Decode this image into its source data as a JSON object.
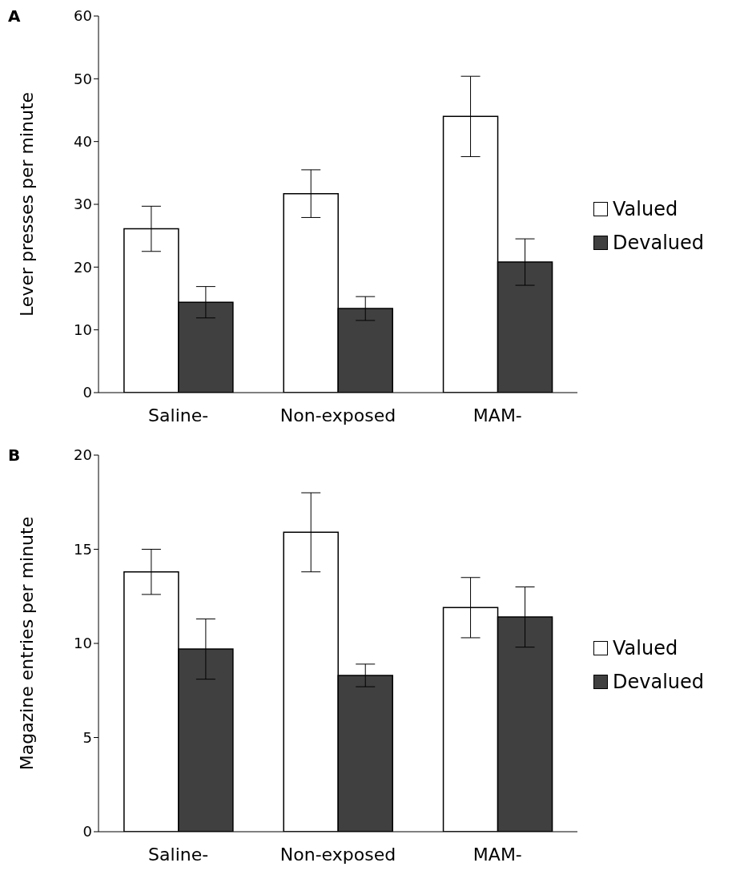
{
  "chart_data": [
    {
      "type": "bar",
      "title": "A",
      "ylabel": "Lever presses per minute",
      "categories": [
        "Saline-",
        "Non-exposed",
        "MAM-"
      ],
      "series": [
        {
          "name": "Valued",
          "color": "#ffffff",
          "values": [
            26.1,
            31.7,
            44.0
          ],
          "errors": [
            3.6,
            3.8,
            6.4
          ]
        },
        {
          "name": "Devalued",
          "color": "#404040",
          "values": [
            14.4,
            13.4,
            20.8
          ],
          "errors": [
            2.5,
            1.9,
            3.7
          ]
        }
      ],
      "ylim": [
        0,
        60
      ],
      "yticks": [
        0,
        10,
        20,
        30,
        40,
        50,
        60
      ],
      "grid": false,
      "legend": "right"
    },
    {
      "type": "bar",
      "title": "B",
      "ylabel": "Magazine entries per minute",
      "categories": [
        "Saline-",
        "Non-exposed",
        "MAM-"
      ],
      "series": [
        {
          "name": "Valued",
          "color": "#ffffff",
          "values": [
            13.8,
            15.9,
            11.9
          ],
          "errors": [
            1.2,
            2.1,
            1.6
          ]
        },
        {
          "name": "Devalued",
          "color": "#404040",
          "values": [
            9.7,
            8.3,
            11.4
          ],
          "errors": [
            1.6,
            0.6,
            1.6
          ]
        }
      ],
      "ylim": [
        0,
        20
      ],
      "yticks": [
        0,
        5,
        10,
        15,
        20
      ],
      "grid": false,
      "legend": "right"
    }
  ]
}
